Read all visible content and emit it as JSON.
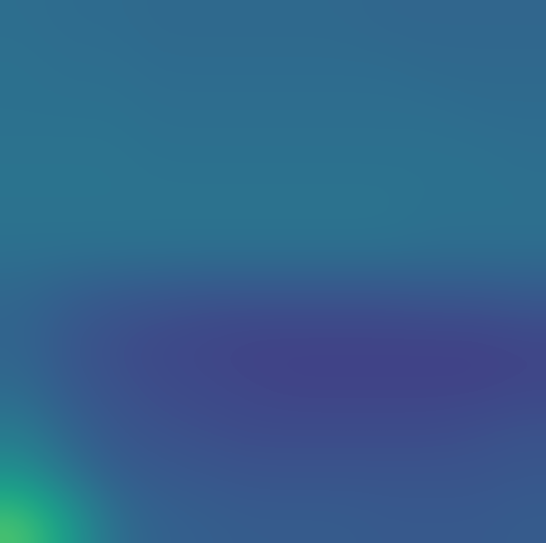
{
  "chart_data": {
    "type": "heatmap",
    "tick_labels": false,
    "color": "viridis",
    "color_range": [
      0,
      1
    ],
    "cells": [
      [
        0.36,
        0.35,
        0.35,
        0.34,
        0.34,
        0.34,
        0.34,
        0.34,
        0.33,
        0.33,
        0.33,
        0.33
      ],
      [
        0.37,
        0.36,
        0.36,
        0.35,
        0.35,
        0.35,
        0.35,
        0.35,
        0.35,
        0.34,
        0.34,
        0.34
      ],
      [
        0.37,
        0.37,
        0.37,
        0.36,
        0.36,
        0.36,
        0.36,
        0.36,
        0.36,
        0.36,
        0.35,
        0.35
      ],
      [
        0.38,
        0.38,
        0.38,
        0.37,
        0.37,
        0.37,
        0.37,
        0.37,
        0.37,
        0.37,
        0.37,
        0.36
      ],
      [
        0.38,
        0.38,
        0.38,
        0.38,
        0.38,
        0.38,
        0.38,
        0.38,
        0.38,
        0.37,
        0.37,
        0.37
      ],
      [
        0.37,
        0.37,
        0.37,
        0.37,
        0.37,
        0.37,
        0.37,
        0.37,
        0.37,
        0.36,
        0.36,
        0.36
      ],
      [
        0.33,
        0.3,
        0.28,
        0.27,
        0.26,
        0.26,
        0.26,
        0.26,
        0.26,
        0.27,
        0.27,
        0.28
      ],
      [
        0.32,
        0.27,
        0.24,
        0.22,
        0.21,
        0.2,
        0.2,
        0.2,
        0.2,
        0.2,
        0.2,
        0.21
      ],
      [
        0.34,
        0.28,
        0.25,
        0.23,
        0.22,
        0.21,
        0.2,
        0.2,
        0.2,
        0.2,
        0.2,
        0.21
      ],
      [
        0.4,
        0.32,
        0.27,
        0.25,
        0.24,
        0.23,
        0.23,
        0.23,
        0.23,
        0.23,
        0.24,
        0.25
      ],
      [
        0.5,
        0.38,
        0.3,
        0.28,
        0.27,
        0.26,
        0.26,
        0.26,
        0.26,
        0.26,
        0.26,
        0.27
      ],
      [
        0.72,
        0.55,
        0.36,
        0.31,
        0.3,
        0.29,
        0.29,
        0.29,
        0.28,
        0.28,
        0.28,
        0.29
      ]
    ]
  }
}
